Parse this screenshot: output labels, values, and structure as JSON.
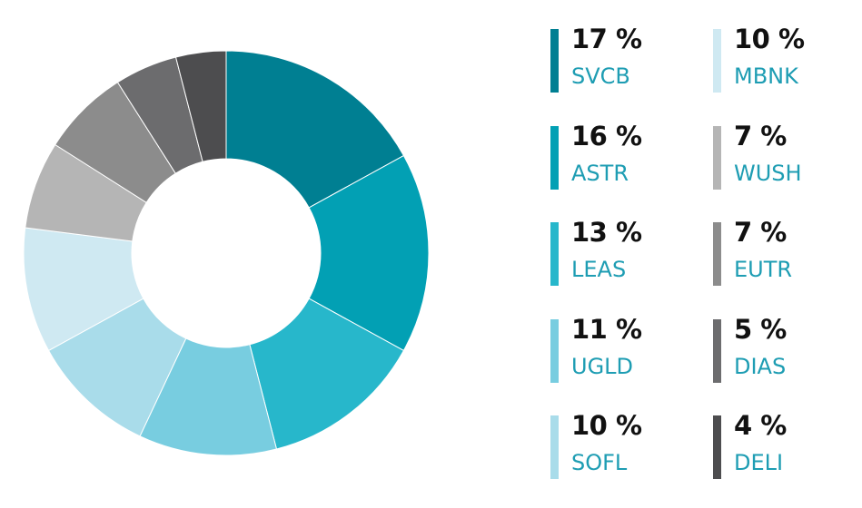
{
  "chart_data": {
    "type": "pie",
    "variant": "donut",
    "title": "",
    "slices": [
      {
        "label": "SVCB",
        "value": 17,
        "display": "17 %",
        "color": "#007f92"
      },
      {
        "label": "ASTR",
        "value": 16,
        "display": "16 %",
        "color": "#02a0b4"
      },
      {
        "label": "LEAS",
        "value": 13,
        "display": "13 %",
        "color": "#27b7cb"
      },
      {
        "label": "UGLD",
        "value": 11,
        "display": "11 %",
        "color": "#78cde0"
      },
      {
        "label": "SOFL",
        "value": 10,
        "display": "10 %",
        "color": "#a9dcea"
      },
      {
        "label": "MBNK",
        "value": 10,
        "display": "10 %",
        "color": "#cfe9f2"
      },
      {
        "label": "WUSH",
        "value": 7,
        "display": "7 %",
        "color": "#b5b5b5"
      },
      {
        "label": "EUTR",
        "value": 7,
        "display": "7 %",
        "color": "#8c8c8c"
      },
      {
        "label": "DIAS",
        "value": 5,
        "display": "5 %",
        "color": "#6c6c6e"
      },
      {
        "label": "DELI",
        "value": 4,
        "display": "4 %",
        "color": "#4d4d4f"
      }
    ],
    "legend_placement": "right",
    "legend_columns": 2
  }
}
